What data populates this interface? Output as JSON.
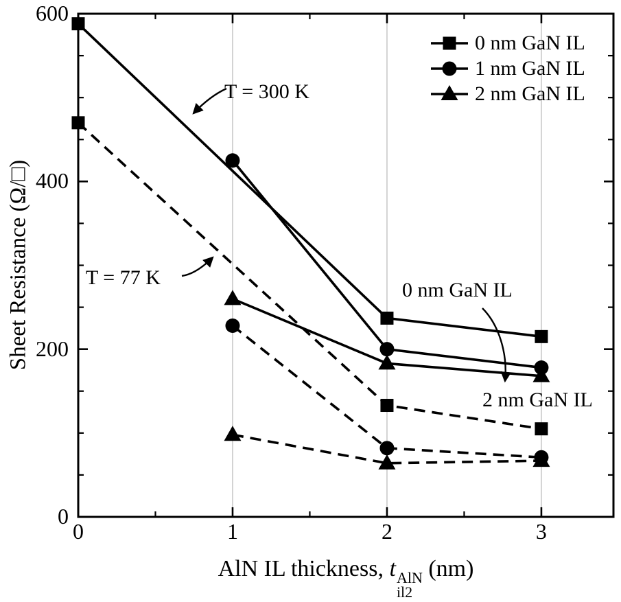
{
  "chart_data": {
    "type": "line",
    "title": "",
    "ylabel": "Sheet Resistance (Ω/□)",
    "xlabel_prefix": "AlN IL thickness, ",
    "xlabel_symbol": "t",
    "xlabel_sub": "il2",
    "xlabel_sup": "AlN",
    "xlabel_suffix": " (nm)",
    "xlim": [
      0,
      3.467
    ],
    "ylim": [
      0,
      600
    ],
    "xticks": [
      0,
      1,
      2,
      3
    ],
    "yticks": [
      0,
      200,
      400,
      600
    ],
    "xtick_labels": [
      "0",
      "1",
      "2",
      "3"
    ],
    "ytick_labels": [
      "0",
      "200",
      "400",
      "600"
    ],
    "x_minor_step": 0.5,
    "y_minor_step": 50,
    "gridlines_x": [
      1,
      2,
      3
    ],
    "grid": "vertical-only",
    "legend_position": "top-right",
    "series": [
      {
        "name": "0 nm GaN IL, T = 300 K",
        "gan_il": "0 nm GaN IL",
        "temperature": "300 K",
        "line": "solid",
        "marker": "square",
        "x": [
          0,
          2,
          3
        ],
        "y": [
          588,
          237,
          215
        ]
      },
      {
        "name": "1 nm GaN IL, T = 300 K",
        "gan_il": "1 nm GaN IL",
        "temperature": "300 K",
        "line": "solid",
        "marker": "circle",
        "x": [
          1,
          2,
          3
        ],
        "y": [
          425,
          200,
          178
        ]
      },
      {
        "name": "2 nm GaN IL, T = 300 K",
        "gan_il": "2 nm GaN IL",
        "temperature": "300 K",
        "line": "solid",
        "marker": "triangle",
        "x": [
          1,
          2,
          3
        ],
        "y": [
          260,
          183,
          168
        ]
      },
      {
        "name": "0 nm GaN IL, T = 77 K",
        "gan_il": "0 nm GaN IL",
        "temperature": "77 K",
        "line": "dashed",
        "marker": "square",
        "x": [
          0,
          2,
          3
        ],
        "y": [
          470,
          133,
          105
        ]
      },
      {
        "name": "1 nm GaN IL, T = 77 K",
        "gan_il": "1 nm GaN IL",
        "temperature": "77 K",
        "line": "dashed",
        "marker": "circle",
        "x": [
          1,
          2,
          3
        ],
        "y": [
          228,
          82,
          71
        ]
      },
      {
        "name": "2 nm GaN IL, T = 77 K",
        "gan_il": "2 nm GaN IL",
        "temperature": "77 K",
        "line": "dashed",
        "marker": "triangle",
        "x": [
          1,
          2,
          3
        ],
        "y": [
          98,
          64,
          67
        ]
      }
    ],
    "legend": [
      {
        "marker": "square",
        "label": "0 nm GaN IL"
      },
      {
        "marker": "circle",
        "label": "1 nm GaN IL"
      },
      {
        "marker": "triangle",
        "label": "2 nm GaN IL"
      }
    ],
    "line_style_meaning": {
      "solid": "T = 300 K",
      "dashed": "T = 77 K"
    },
    "annotations": [
      {
        "id": "t300",
        "text": "T = 300 K"
      },
      {
        "id": "t77",
        "text": "T = 77 K"
      },
      {
        "id": "gan0",
        "text": "0 nm GaN IL"
      },
      {
        "id": "gan2",
        "text": "2 nm GaN IL"
      }
    ],
    "colors": {
      "line": "#000000",
      "grid": "#c9c9c9",
      "background": "#ffffff"
    }
  }
}
